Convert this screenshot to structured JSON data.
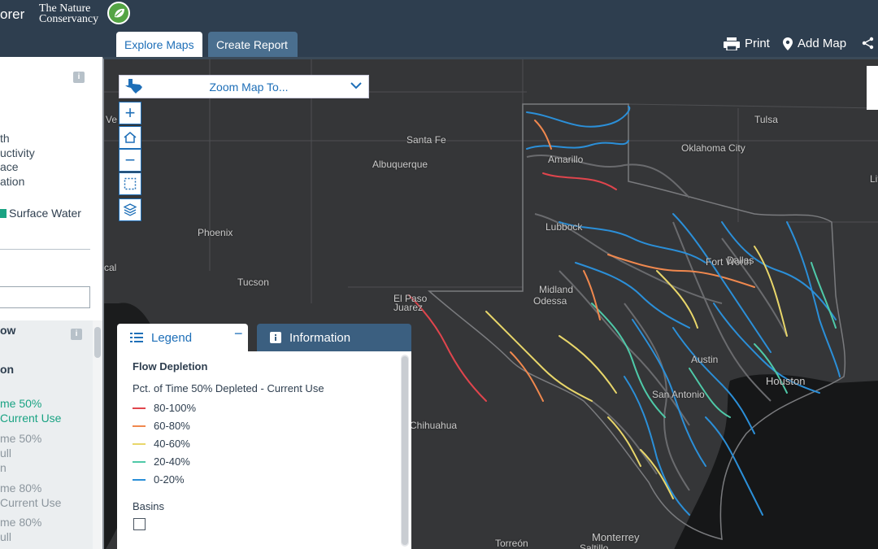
{
  "header": {
    "app_title": "orer",
    "logo_line1": "The Nature",
    "logo_line2": "Conservancy",
    "tabs": [
      "Explore Maps",
      "Create Report"
    ],
    "print_label": "Print",
    "add_map_label": "Add Map"
  },
  "left_panel": {
    "top_lines": [
      "th",
      "uctivity",
      "ace",
      "ation"
    ],
    "checkbox_label": "Surface Water",
    "lower_lines": [
      {
        "text": "ow",
        "style": "dark"
      },
      {
        "text": "on",
        "style": "dark"
      },
      {
        "text": "me 50%",
        "style": "active"
      },
      {
        "text": "Current Use",
        "style": "active"
      },
      {
        "text": "me 50%",
        "style": "muted"
      },
      {
        "text": "ull",
        "style": "muted"
      },
      {
        "text": "n",
        "style": "muted"
      },
      {
        "text": "me 80%",
        "style": "muted"
      },
      {
        "text": "Current Use",
        "style": "muted"
      },
      {
        "text": "me 80%",
        "style": "muted"
      },
      {
        "text": "ull",
        "style": "muted"
      }
    ]
  },
  "map": {
    "zoom_to_label": "Zoom Map To...",
    "cities": [
      "Santa Fe",
      "Albuquerque",
      "Amarillo",
      "Oklahoma City",
      "Tulsa",
      "Lubbock",
      "Phoenix",
      "Tucson",
      "Fort Worth",
      "Dallas",
      "Midland",
      "Odessa",
      "El Paso",
      "Juarez",
      "Austin",
      "Houston",
      "San Antonio",
      "Chihuahua",
      "Monterrey",
      "Torreón",
      "Saltillo",
      "Ve",
      "cal",
      "Lit"
    ]
  },
  "legend": {
    "tab_legend": "Legend",
    "tab_info": "Information",
    "heading": "Flow Depletion",
    "subheading": "Pct. of Time 50% Depleted - Current Use",
    "items": [
      {
        "label": "80-100%",
        "color": "#e0454d"
      },
      {
        "label": "60-80%",
        "color": "#f0884e"
      },
      {
        "label": "40-60%",
        "color": "#e8d66a"
      },
      {
        "label": "20-40%",
        "color": "#4fc9a8"
      },
      {
        "label": "0-20%",
        "color": "#2b8fd8"
      }
    ],
    "basins_label": "Basins"
  },
  "colors": {
    "header_bg": "#2e3e4f",
    "accent": "#1e6fb8",
    "active_green": "#1aa383",
    "map_bg": "#353638"
  }
}
